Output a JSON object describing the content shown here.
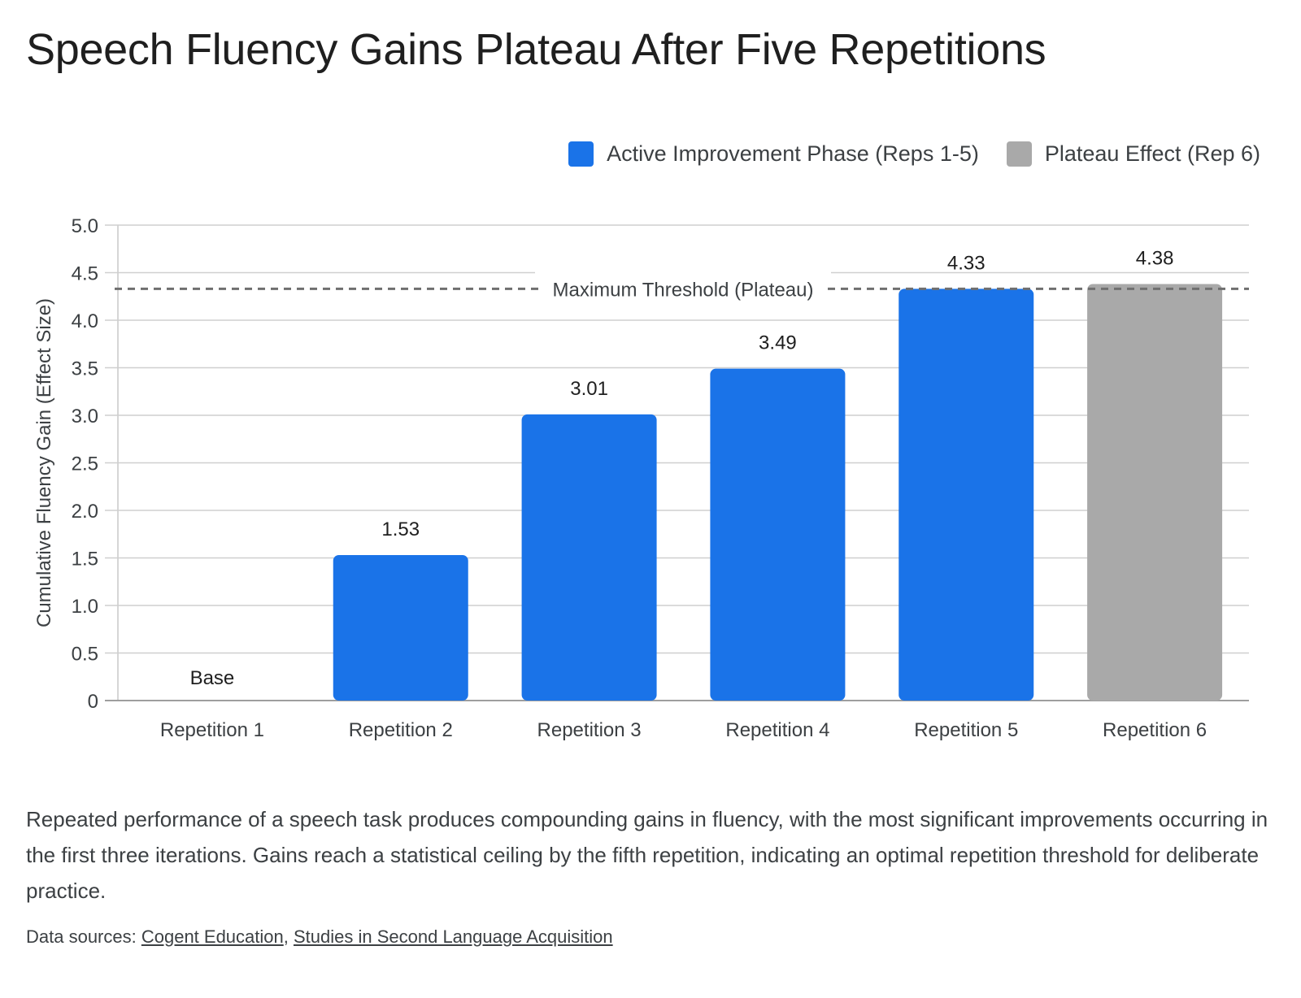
{
  "title": "Speech Fluency Gains Plateau After Five Repetitions",
  "legend": [
    {
      "label": "Active Improvement Phase (Reps 1-5)",
      "color": "#1a73e8"
    },
    {
      "label": "Plateau Effect (Rep 6)",
      "color": "#a9a9a9"
    }
  ],
  "chart_data": {
    "type": "bar",
    "categories": [
      "Repetition 1",
      "Repetition 2",
      "Repetition 3",
      "Repetition 4",
      "Repetition 5",
      "Repetition 6"
    ],
    "values": [
      0,
      1.53,
      3.01,
      3.49,
      4.33,
      4.38
    ],
    "data_labels": [
      "Base",
      "1.53",
      "3.01",
      "3.49",
      "4.33",
      "4.38"
    ],
    "bar_colors": [
      "#1a73e8",
      "#1a73e8",
      "#1a73e8",
      "#1a73e8",
      "#1a73e8",
      "#a9a9a9"
    ],
    "ylabel": "Cumulative Fluency Gain (Effect Size)",
    "ylim": [
      0,
      5
    ],
    "yticks": [
      0,
      0.5,
      1,
      1.5,
      2,
      2.5,
      3,
      3.5,
      4,
      4.5,
      5
    ],
    "ytick_labels": [
      "0",
      "0.5",
      "1.0",
      "1.5",
      "2.0",
      "2.5",
      "3.0",
      "3.5",
      "4.0",
      "4.5",
      "5.0"
    ],
    "threshold": {
      "value": 4.33,
      "label": "Maximum Threshold (Plateau)"
    },
    "grid": true,
    "legend_position": "top-right"
  },
  "description": "Repeated performance of a speech task produces compounding gains in fluency, with the most significant improvements occurring in the first three iterations. Gains reach a statistical ceiling by the fifth repetition, indicating an optimal repetition threshold for deliberate practice.",
  "sources": {
    "prefix": "Data sources: ",
    "links": [
      "Cogent Education",
      "Studies in Second Language Acquisition"
    ],
    "separator": ", "
  }
}
